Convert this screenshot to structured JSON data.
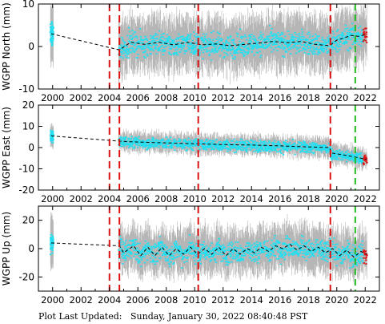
{
  "footer": {
    "label": "Plot Last Updated:",
    "timestamp": "Sunday, January 30, 2022 08:40:48 PST"
  },
  "colors": {
    "errorbar": "#a9a9a9",
    "points": "#22e0f2",
    "trend": "#000000",
    "recent_points": "#dd1111",
    "offset_line": "#dd1111",
    "event_line": "#22bb22"
  },
  "chart_data": [
    {
      "type": "scatter",
      "ylabel": "WGPP North (mm)",
      "ylim": [
        -10,
        10
      ],
      "yticks": [
        -10,
        0,
        10
      ],
      "xlim": [
        1999.0,
        2023.0
      ],
      "xticks": [
        "2000",
        "2002",
        "2004",
        "2006",
        "2008",
        "2010",
        "2012",
        "2014",
        "2016",
        "2018",
        "2020",
        "2022"
      ],
      "offset_lines_red": [
        2004.0,
        2004.7,
        2010.25,
        2019.55
      ],
      "event_lines_green": [
        2021.3
      ],
      "trend": {
        "x": [
          1999.9,
          2004.7,
          2005.5,
          2006.5,
          2007.5,
          2008.5,
          2009.5,
          2010.5,
          2011.5,
          2012.5,
          2013.5,
          2014.5,
          2015.5,
          2016.5,
          2017.5,
          2018.5,
          2019.5,
          2020.0,
          2020.5,
          2021.0,
          2021.5,
          2022.1
        ],
        "y": [
          3.0,
          -0.8,
          1.0,
          0.5,
          1.0,
          0.4,
          1.0,
          0.4,
          0.6,
          0.2,
          0.5,
          0.8,
          1.2,
          0.9,
          1.2,
          0.5,
          0.2,
          1.5,
          2.0,
          2.6,
          2.4,
          2.8
        ]
      },
      "scatter_spread": 2.5,
      "errorbar_spread": 5.5
    },
    {
      "type": "scatter",
      "ylabel": "WGPP East (mm)",
      "ylim": [
        -20,
        20
      ],
      "yticks": [
        -20,
        -10,
        0,
        10,
        20
      ],
      "xlim": [
        1999.0,
        2023.0
      ],
      "xticks": [
        "2000",
        "2002",
        "2004",
        "2006",
        "2008",
        "2010",
        "2012",
        "2014",
        "2016",
        "2018",
        "2020",
        "2022"
      ],
      "offset_lines_red": [
        2004.0,
        2004.7,
        2010.25,
        2019.55
      ],
      "event_lines_green": [
        2021.3
      ],
      "trend": {
        "x": [
          1999.9,
          2004.7,
          2006.0,
          2008.0,
          2010.0,
          2012.0,
          2014.0,
          2016.0,
          2018.0,
          2019.5,
          2019.6,
          2020.5,
          2021.3,
          2022.1
        ],
        "y": [
          5.5,
          3.0,
          2.6,
          2.2,
          1.8,
          1.4,
          1.2,
          0.8,
          0.3,
          0.0,
          -2.5,
          -3.5,
          -4.5,
          -5.5
        ]
      },
      "scatter_spread": 2.5,
      "errorbar_spread": 4.0
    },
    {
      "type": "scatter",
      "ylabel": "WGPP Up (mm)",
      "ylim": [
        -30,
        30
      ],
      "yticks": [
        -20,
        0,
        20
      ],
      "xlim": [
        1999.0,
        2023.0
      ],
      "xticks": [
        "2000",
        "2002",
        "2004",
        "2006",
        "2008",
        "2010",
        "2012",
        "2014",
        "2016",
        "2018",
        "2020",
        "2022"
      ],
      "offset_lines_red": [
        2004.0,
        2004.7,
        2010.25,
        2019.55
      ],
      "event_lines_green": [
        2021.3
      ],
      "trend": {
        "x": [
          1999.9,
          2004.7,
          2005.0,
          2005.7,
          2006.2,
          2006.7,
          2007.2,
          2007.7,
          2008.2,
          2008.7,
          2009.2,
          2009.7,
          2010.2,
          2010.7,
          2011.2,
          2011.7,
          2012.2,
          2012.7,
          2013.2,
          2013.7,
          2014.2,
          2014.7,
          2015.2,
          2015.7,
          2016.2,
          2016.7,
          2017.2,
          2017.7,
          2018.2,
          2018.7,
          2019.2,
          2019.7,
          2020.2,
          2020.7,
          2021.2,
          2021.7,
          2022.1
        ],
        "y": [
          4,
          2,
          -3,
          2,
          -5,
          1,
          -5,
          1,
          -5,
          0,
          -4,
          1,
          -4,
          0,
          -4,
          1,
          -5,
          0,
          -4,
          0,
          -3,
          1,
          -2,
          2,
          0,
          3,
          -1,
          2,
          -2,
          1,
          -3,
          0,
          -5,
          -1,
          -6,
          -2,
          -4
        ]
      },
      "scatter_spread": 7,
      "errorbar_spread": 14
    }
  ]
}
